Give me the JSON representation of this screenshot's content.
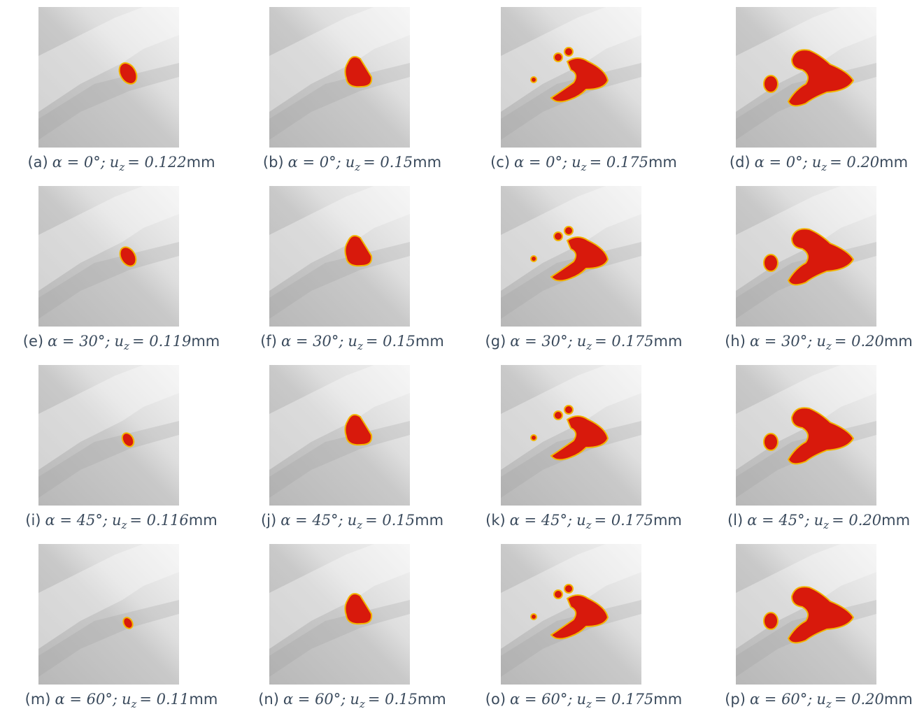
{
  "panels": [
    {
      "label": "(a)",
      "angle": "α = 0°;",
      "var": "u",
      "sub": "z",
      "eq": "= 0.122",
      "unit": "mm"
    },
    {
      "label": "(b)",
      "angle": "α = 0°;",
      "var": "u",
      "sub": "z",
      "eq": "= 0.15",
      "unit": "mm"
    },
    {
      "label": "(c)",
      "angle": "α = 0°;",
      "var": "u",
      "sub": "z",
      "eq": "= 0.175",
      "unit": "mm"
    },
    {
      "label": "(d)",
      "angle": "α = 0°;",
      "var": "u",
      "sub": "z",
      "eq": "= 0.20",
      "unit": "mm"
    },
    {
      "label": "(e)",
      "angle": "α = 30°;",
      "var": "u",
      "sub": "z",
      "eq": "= 0.119",
      "unit": "mm"
    },
    {
      "label": "(f)",
      "angle": "α = 30°;",
      "var": "u",
      "sub": "z",
      "eq": "= 0.15",
      "unit": "mm"
    },
    {
      "label": "(g)",
      "angle": "α = 30°;",
      "var": "u",
      "sub": "z",
      "eq": "= 0.175",
      "unit": "mm"
    },
    {
      "label": "(h)",
      "angle": "α = 30°;",
      "var": "u",
      "sub": "z",
      "eq": "= 0.20",
      "unit": "mm"
    },
    {
      "label": "(i)",
      "angle": "α = 45°;",
      "var": "u",
      "sub": "z",
      "eq": "= 0.116",
      "unit": "mm"
    },
    {
      "label": "(j)",
      "angle": "α = 45°;",
      "var": "u",
      "sub": "z",
      "eq": "= 0.15",
      "unit": "mm"
    },
    {
      "label": "(k)",
      "angle": "α = 45°;",
      "var": "u",
      "sub": "z",
      "eq": "= 0.175",
      "unit": "mm"
    },
    {
      "label": "(l)",
      "angle": "α = 45°;",
      "var": "u",
      "sub": "z",
      "eq": "= 0.20",
      "unit": "mm"
    },
    {
      "label": "(m)",
      "angle": "α = 60°;",
      "var": "u",
      "sub": "z",
      "eq": "= 0.11",
      "unit": "mm"
    },
    {
      "label": "(n)",
      "angle": "α = 60°;",
      "var": "u",
      "sub": "z",
      "eq": "= 0.15",
      "unit": "mm"
    },
    {
      "label": "(o)",
      "angle": "α = 60°;",
      "var": "u",
      "sub": "z",
      "eq": "= 0.175",
      "unit": "mm"
    },
    {
      "label": "(p)",
      "angle": "α = 60°;",
      "var": "u",
      "sub": "z",
      "eq": "= 0.20",
      "unit": "mm"
    }
  ]
}
